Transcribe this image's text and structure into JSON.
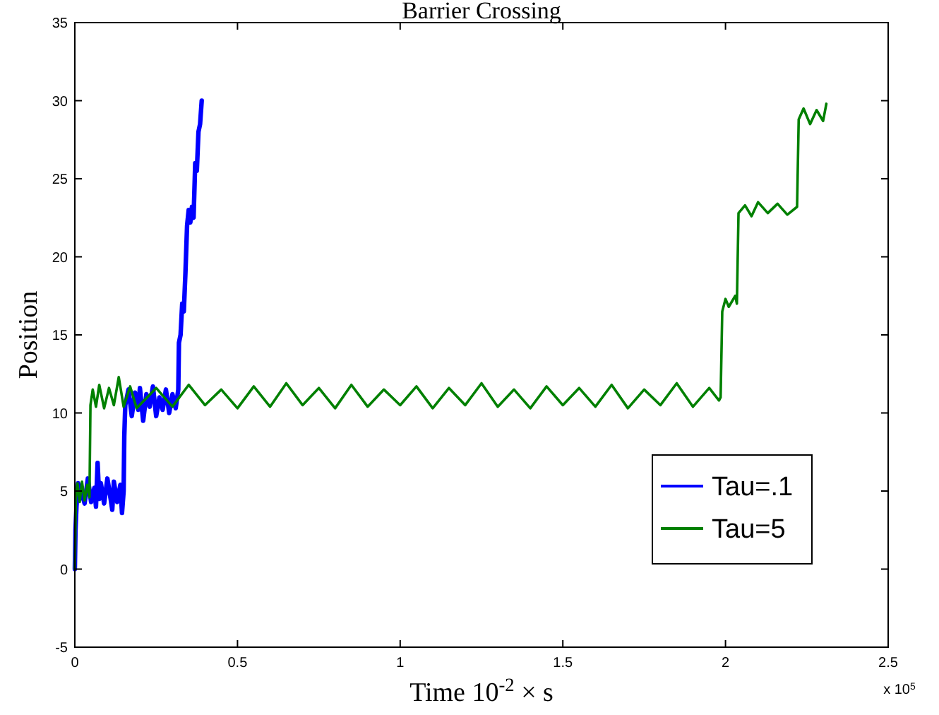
{
  "chart_data": {
    "type": "line",
    "title": "Barrier Crossing",
    "xlabel": "Time 10$^{-2}$ × s",
    "ylabel": "Position",
    "annotations": [
      "x 10$^{5}$"
    ],
    "xlim": [
      0,
      2.5
    ],
    "xticks": [
      0,
      0.5,
      1,
      1.5,
      2,
      2.5
    ],
    "ylim": [
      -5,
      35
    ],
    "yticks": [
      -5,
      0,
      5,
      10,
      15,
      20,
      25,
      30,
      35
    ],
    "grid": false,
    "legend": "right",
    "line_style": "solid",
    "marker": "none",
    "series": [
      {
        "name": "Tau=.1",
        "color": "#0000ff",
        "x": [
          0,
          0.002,
          0.005,
          0.01,
          0.015,
          0.02,
          0.03,
          0.04,
          0.05,
          0.06,
          0.065,
          0.07,
          0.075,
          0.08,
          0.09,
          0.1,
          0.11,
          0.115,
          0.12,
          0.13,
          0.14,
          0.145,
          0.15,
          0.152,
          0.155,
          0.165,
          0.175,
          0.185,
          0.195,
          0.2,
          0.21,
          0.22,
          0.23,
          0.24,
          0.25,
          0.26,
          0.27,
          0.28,
          0.29,
          0.3,
          0.31,
          0.318,
          0.32,
          0.325,
          0.33,
          0.335,
          0.34,
          0.345,
          0.35,
          0.355,
          0.36,
          0.365,
          0.37,
          0.375,
          0.38,
          0.385,
          0.39
        ],
        "values": [
          0,
          2.5,
          4,
          5.5,
          4.5,
          5,
          4.2,
          5.8,
          4.3,
          5.2,
          4,
          6.8,
          4.5,
          5.5,
          4.2,
          5.8,
          4.5,
          3.8,
          5.6,
          4.3,
          5.4,
          3.6,
          5,
          8.5,
          10.5,
          11.5,
          9.8,
          11.3,
          10.2,
          11.6,
          9.5,
          11.2,
          10.4,
          11.7,
          9.8,
          11,
          10.2,
          11.5,
          10,
          11.2,
          10.3,
          11.5,
          14.5,
          15,
          17,
          16.5,
          19,
          22,
          23,
          22.2,
          23.2,
          22.5,
          26,
          25.5,
          28,
          28.5,
          30
        ]
      },
      {
        "name": "Tau=5",
        "color": "#008000",
        "x": [
          0,
          0.003,
          0.008,
          0.015,
          0.022,
          0.03,
          0.038,
          0.045,
          0.048,
          0.055,
          0.065,
          0.075,
          0.09,
          0.105,
          0.12,
          0.135,
          0.15,
          0.17,
          0.19,
          0.25,
          0.3,
          0.35,
          0.4,
          0.45,
          0.5,
          0.55,
          0.6,
          0.65,
          0.7,
          0.75,
          0.8,
          0.85,
          0.9,
          0.95,
          1,
          1.05,
          1.1,
          1.15,
          1.2,
          1.25,
          1.3,
          1.35,
          1.4,
          1.45,
          1.5,
          1.55,
          1.6,
          1.65,
          1.7,
          1.75,
          1.8,
          1.85,
          1.9,
          1.95,
          1.98,
          1.985,
          1.99,
          2,
          2.01,
          2.03,
          2.035,
          2.04,
          2.06,
          2.08,
          2.1,
          2.13,
          2.16,
          2.19,
          2.22,
          2.225,
          2.24,
          2.26,
          2.28,
          2.3,
          2.31
        ],
        "values": [
          0,
          4.5,
          5.5,
          4.3,
          5.6,
          4.4,
          5.4,
          4.6,
          10.5,
          11.5,
          10.4,
          11.8,
          10.3,
          11.6,
          10.5,
          12.3,
          10.4,
          11.7,
          10.3,
          11.6,
          10.4,
          11.8,
          10.5,
          11.5,
          10.3,
          11.7,
          10.4,
          11.9,
          10.5,
          11.6,
          10.3,
          11.8,
          10.4,
          11.5,
          10.5,
          11.7,
          10.3,
          11.6,
          10.5,
          11.9,
          10.4,
          11.5,
          10.3,
          11.7,
          10.5,
          11.6,
          10.4,
          11.8,
          10.3,
          11.5,
          10.5,
          11.9,
          10.4,
          11.6,
          10.8,
          11,
          16.5,
          17.3,
          16.8,
          17.5,
          17,
          22.8,
          23.3,
          22.6,
          23.5,
          22.8,
          23.4,
          22.7,
          23.2,
          28.8,
          29.5,
          28.5,
          29.4,
          28.7,
          29.8
        ]
      }
    ]
  }
}
